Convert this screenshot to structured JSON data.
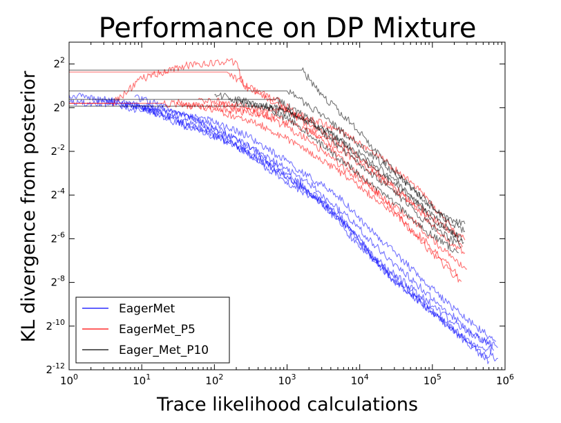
{
  "chart_data": {
    "type": "line",
    "title": "Performance on DP Mixture",
    "xlabel": "Trace likelihood calculations",
    "ylabel": "KL divergence from posterior",
    "x_scale": "log10",
    "y_scale": "log2",
    "xlim": [
      1,
      1000000
    ],
    "ylim": [
      0.000244140625,
      8
    ],
    "x_ticks": [
      {
        "base": "10",
        "exp": "0",
        "value": 1
      },
      {
        "base": "10",
        "exp": "1",
        "value": 10
      },
      {
        "base": "10",
        "exp": "2",
        "value": 100
      },
      {
        "base": "10",
        "exp": "3",
        "value": 1000
      },
      {
        "base": "10",
        "exp": "4",
        "value": 10000
      },
      {
        "base": "10",
        "exp": "5",
        "value": 100000
      },
      {
        "base": "10",
        "exp": "6",
        "value": 1000000
      }
    ],
    "y_ticks": [
      {
        "base": "2",
        "exp": "2",
        "value": 4
      },
      {
        "base": "2",
        "exp": "0",
        "value": 1
      },
      {
        "base": "2",
        "exp": "-2",
        "value": 0.25
      },
      {
        "base": "2",
        "exp": "-4",
        "value": 0.0625
      },
      {
        "base": "2",
        "exp": "-6",
        "value": 0.015625
      },
      {
        "base": "2",
        "exp": "-8",
        "value": 0.00390625
      },
      {
        "base": "2",
        "exp": "-10",
        "value": 0.0009765625
      },
      {
        "base": "2",
        "exp": "-12",
        "value": 0.000244140625
      }
    ],
    "legend_position": "bottom-left",
    "grid": false,
    "series": [
      {
        "name": "EagerMet",
        "color": "#0000ff",
        "runs": [
          {
            "x": [
              1,
              5,
              20,
              80,
              300,
              1000,
              5000,
              20000,
              100000,
              300000,
              700000
            ],
            "y": [
              1.5,
              1.15,
              0.9,
              0.6,
              0.3,
              0.12,
              0.035,
              0.006,
              0.0015,
              0.0006,
              0.00045
            ]
          },
          {
            "x": [
              1,
              8,
              30,
              100,
              400,
              2000,
              8000,
              30000,
              150000,
              500000,
              800000
            ],
            "y": [
              1.2,
              1.1,
              0.7,
              0.45,
              0.2,
              0.07,
              0.02,
              0.004,
              0.0011,
              0.0004,
              0.00035
            ]
          },
          {
            "x": [
              3,
              10,
              40,
              150,
              600,
              3000,
              10000,
              50000,
              200000,
              600000
            ],
            "y": [
              1.3,
              1.0,
              0.55,
              0.35,
              0.15,
              0.05,
              0.012,
              0.003,
              0.0008,
              0.00032
            ]
          },
          {
            "x": [
              5,
              15,
              60,
              200,
              800,
              4000,
              15000,
              70000,
              250000,
              650000
            ],
            "y": [
              1.05,
              0.85,
              0.5,
              0.3,
              0.11,
              0.04,
              0.009,
              0.0025,
              0.0009,
              0.00055
            ]
          },
          {
            "x": [
              8,
              25,
              90,
              300,
              1200,
              5000,
              20000,
              90000,
              300000,
              750000
            ],
            "y": [
              1.4,
              0.95,
              0.65,
              0.4,
              0.16,
              0.06,
              0.015,
              0.0035,
              0.0012,
              0.0006
            ]
          },
          {
            "x": [
              10,
              40,
              120,
              500,
              2000,
              7000,
              30000,
              120000,
              400000,
              800000
            ],
            "y": [
              1.1,
              0.8,
              0.45,
              0.22,
              0.09,
              0.03,
              0.007,
              0.002,
              0.0007,
              0.0005
            ]
          }
        ]
      },
      {
        "name": "EagerMet_P5",
        "color": "#ff0000",
        "runs": [
          {
            "x": [
              1,
              4,
              10,
              40,
              200,
              250,
              800,
              2000,
              8000,
              30000,
              100000,
              280000
            ],
            "y": [
              1.15,
              1.15,
              2.5,
              3.8,
              4.3,
              2.0,
              1.2,
              0.6,
              0.25,
              0.08,
              0.03,
              0.015
            ]
          },
          {
            "x": [
              1,
              150,
              400,
              1500,
              5000,
              20000,
              80000,
              250000
            ],
            "y": [
              3.1,
              3.1,
              1.6,
              0.7,
              0.22,
              0.06,
              0.012,
              0.004
            ]
          },
          {
            "x": [
              1,
              20,
              100,
              500,
              2000,
              10000,
              50000,
              200000,
              300000
            ],
            "y": [
              1.15,
              1.15,
              1.0,
              0.8,
              0.35,
              0.1,
              0.03,
              0.008,
              0.006
            ]
          },
          {
            "x": [
              30,
              100,
              400,
              1500,
              6000,
              25000,
              90000,
              220000
            ],
            "y": [
              1.2,
              0.95,
              0.6,
              0.3,
              0.12,
              0.04,
              0.013,
              0.005
            ]
          },
          {
            "x": [
              60,
              200,
              800,
              3000,
              12000,
              50000,
              150000,
              280000
            ],
            "y": [
              1.3,
              1.0,
              0.7,
              0.4,
              0.15,
              0.05,
              0.016,
              0.01
            ]
          },
          {
            "x": [
              100,
              300,
              1200,
              5000,
              20000,
              70000,
              200000,
              260000
            ],
            "y": [
              1.25,
              1.0,
              0.85,
              0.5,
              0.2,
              0.07,
              0.02,
              0.012
            ]
          }
        ]
      },
      {
        "name": "Eager_Met_P10",
        "color": "#000000",
        "runs": [
          {
            "x": [
              1,
              1600,
              3000,
              8000,
              20000,
              60000,
              150000,
              280000
            ],
            "y": [
              3.3,
              3.3,
              1.5,
              0.6,
              0.2,
              0.07,
              0.03,
              0.025
            ]
          },
          {
            "x": [
              1,
              1000,
              3000,
              10000,
              40000,
              120000,
              280000
            ],
            "y": [
              1.7,
              1.7,
              0.8,
              0.3,
              0.1,
              0.035,
              0.02
            ]
          },
          {
            "x": [
              1,
              700,
              2000,
              6000,
              25000,
              90000,
              250000
            ],
            "y": [
              1.3,
              1.3,
              0.7,
              0.25,
              0.08,
              0.025,
              0.012
            ]
          },
          {
            "x": [
              1,
              500,
              1500,
              5000,
              20000,
              80000,
              230000
            ],
            "y": [
              1.05,
              1.05,
              0.55,
              0.2,
              0.07,
              0.02,
              0.01
            ]
          },
          {
            "x": [
              100,
              300,
              1000,
              4000,
              15000,
              60000,
              200000,
              260000
            ],
            "y": [
              1.5,
              1.2,
              0.9,
              0.45,
              0.15,
              0.05,
              0.018,
              0.015
            ]
          },
          {
            "x": [
              200,
              600,
              2000,
              7000,
              30000,
              100000,
              270000
            ],
            "y": [
              1.2,
              1.0,
              0.65,
              0.3,
              0.1,
              0.03,
              0.014
            ]
          }
        ]
      }
    ]
  }
}
